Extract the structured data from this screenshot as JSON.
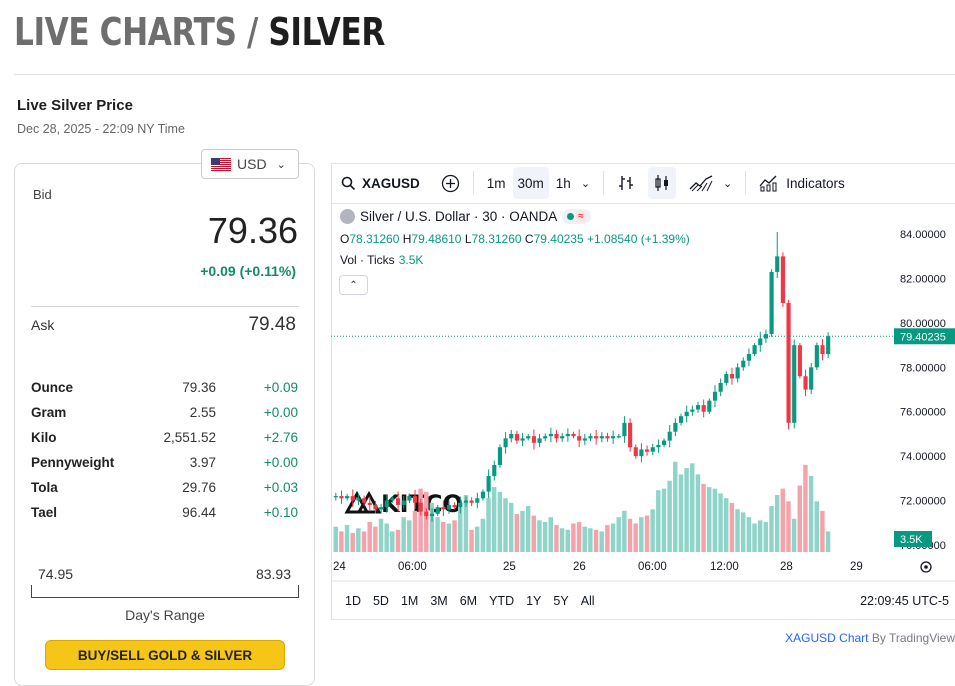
{
  "header": {
    "title_part1": "LIVE CHARTS / ",
    "title_part2": "SILVER",
    "subtitle": "Live Silver Price",
    "timestamp": "Dec 28, 2025 - 22:09 NY Time"
  },
  "price_card": {
    "currency": "USD",
    "bid_label": "Bid",
    "bid": "79.36",
    "bid_change": "+0.09 (+0.11%)",
    "ask_label": "Ask",
    "ask": "79.48",
    "units": [
      {
        "name": "Ounce",
        "price": "79.36",
        "change": "+0.09"
      },
      {
        "name": "Gram",
        "price": "2.55",
        "change": "+0.00"
      },
      {
        "name": "Kilo",
        "price": "2,551.52",
        "change": "+2.76"
      },
      {
        "name": "Pennyweight",
        "price": "3.97",
        "change": "+0.00"
      },
      {
        "name": "Tola",
        "price": "29.76",
        "change": "+0.03"
      },
      {
        "name": "Tael",
        "price": "96.44",
        "change": "+0.10"
      }
    ],
    "range_low": "74.95",
    "range_high": "83.93",
    "range_label": "Day's Range",
    "buy_button": "BUY/SELL GOLD & SILVER"
  },
  "toolbar": {
    "symbol": "XAGUSD",
    "intervals": [
      "1m",
      "30m",
      "1h"
    ],
    "active_interval": "30m",
    "indicators_label": "Indicators"
  },
  "legend": {
    "title": "Silver / U.S. Dollar · 30 · OANDA",
    "open_label": "O",
    "open": "78.31260",
    "high_label": "H",
    "high": "79.48610",
    "low_label": "L",
    "low": "78.31260",
    "close_label": "C",
    "close": "79.40235",
    "change": "+1.08540 (+1.39%)",
    "volume_label": "Vol · Ticks",
    "volume_value": "3.5K",
    "watermark": "KITCO"
  },
  "chart_data": {
    "type": "candlestick",
    "symbol": "XAGUSD",
    "y_ticks": [
      "84.00000",
      "82.00000",
      "80.00000",
      "78.00000",
      "76.00000",
      "74.00000",
      "72.00000",
      "70.00000"
    ],
    "x_ticks": [
      "24",
      "06:00",
      "25",
      "26",
      "06:00",
      "12:00",
      "28",
      "29"
    ],
    "last_price_label": "79.40235",
    "last_volume_label": "3.5K",
    "ylim": [
      69.5,
      85.0
    ],
    "up_color": "#089981",
    "down_color": "#f23645",
    "closes": [
      72.2,
      72.1,
      72.2,
      72.0,
      72.1,
      71.9,
      71.8,
      71.6,
      71.7,
      72.0,
      72.1,
      71.8,
      72.0,
      72.2,
      71.9,
      71.5,
      71.3,
      71.4,
      71.7,
      71.6,
      71.8,
      71.7,
      71.9,
      72.0,
      71.9,
      72.1,
      72.4,
      73.1,
      73.6,
      74.4,
      74.8,
      75.0,
      74.7,
      74.8,
      74.9,
      74.6,
      74.8,
      74.9,
      75.0,
      74.8,
      74.9,
      75.0,
      74.9,
      74.7,
      74.8,
      74.9,
      74.8,
      74.9,
      74.8,
      74.9,
      74.9,
      75.5,
      74.4,
      74.0,
      74.3,
      74.2,
      74.4,
      74.5,
      74.7,
      75.1,
      75.5,
      75.8,
      76.0,
      76.1,
      76.3,
      76.0,
      76.5,
      76.9,
      77.3,
      77.7,
      77.5,
      78.0,
      78.3,
      78.6,
      79.0,
      79.3,
      79.5,
      82.3,
      83.0,
      80.9,
      75.5,
      79.0,
      77.6,
      77.0,
      78.0,
      79.0,
      78.6,
      79.4
    ],
    "volumes": [
      1.6,
      1.3,
      1.7,
      1.2,
      1.5,
      1.3,
      1.9,
      1.6,
      2.1,
      1.8,
      1.3,
      1.4,
      2.2,
      2.0,
      2.6,
      4.0,
      3.8,
      3.1,
      2.2,
      1.9,
      1.8,
      2.0,
      3.1,
      3.6,
      1.4,
      1.6,
      2.1,
      3.4,
      4.1,
      3.8,
      3.4,
      3.1,
      2.4,
      2.6,
      2.9,
      2.3,
      2.0,
      1.9,
      2.2,
      1.7,
      1.5,
      1.4,
      1.8,
      1.9,
      1.6,
      1.5,
      1.4,
      1.3,
      1.7,
      1.8,
      2.2,
      2.6,
      2.1,
      1.8,
      2.2,
      2.3,
      2.7,
      3.9,
      4.0,
      4.5,
      5.7,
      4.9,
      5.3,
      5.6,
      4.9,
      4.3,
      4.1,
      4.0,
      3.7,
      3.4,
      3.1,
      2.7,
      2.5,
      2.2,
      1.8,
      2.0,
      1.9,
      2.9,
      3.6,
      4.0,
      3.2,
      2.1,
      4.2,
      5.5,
      4.8,
      3.2,
      2.6,
      1.3
    ]
  },
  "time_range": {
    "tabs": [
      "1D",
      "5D",
      "1M",
      "3M",
      "6M",
      "YTD",
      "1Y",
      "5Y",
      "All"
    ],
    "clock": "22:09:45 UTC-5"
  },
  "attribution": {
    "link": "XAGUSD Chart",
    "suffix": " By TradingView"
  }
}
